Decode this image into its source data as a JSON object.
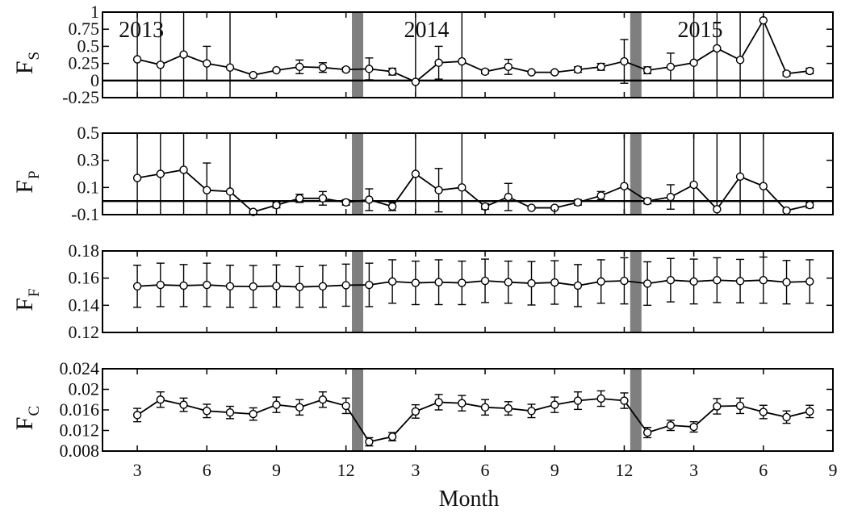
{
  "figure": {
    "xlabel": "Month",
    "x_tick_labels": [
      "3",
      "6",
      "9",
      "12",
      "3",
      "6",
      "9",
      "12",
      "3",
      "6",
      "9"
    ],
    "year_labels": [
      "2013",
      "2014",
      "2015"
    ],
    "gap_after_x": [
      12.5,
      24.5
    ]
  },
  "chart_data": [
    {
      "type": "line",
      "ylabel": "F",
      "ylabel_sub": "S",
      "ylim": [
        -0.25,
        1
      ],
      "y_ticks": [
        -0.25,
        0,
        0.25,
        0.5,
        0.75,
        1
      ],
      "y_tick_labels": [
        "-0.25",
        "0",
        "0.25",
        "0.5",
        "0.75",
        "1"
      ],
      "zero_line": true,
      "x": [
        3,
        4,
        5,
        6,
        7,
        8,
        9,
        10,
        11,
        12,
        13,
        14,
        15,
        16,
        17,
        18,
        19,
        20,
        21,
        22,
        23,
        24,
        25,
        26,
        27,
        28,
        29,
        30,
        31,
        32
      ],
      "values": [
        0.31,
        0.23,
        0.38,
        0.25,
        0.19,
        0.08,
        0.15,
        0.2,
        0.19,
        0.16,
        0.17,
        0.13,
        -0.02,
        0.26,
        0.28,
        0.13,
        0.2,
        0.12,
        0.12,
        0.16,
        0.2,
        0.28,
        0.15,
        0.2,
        0.26,
        0.47,
        0.3,
        0.88,
        0.1,
        0.14
      ],
      "err": [
        1.2,
        1.2,
        1.2,
        0.25,
        1.2,
        0.02,
        0.02,
        0.1,
        0.07,
        0.03,
        0.16,
        0.05,
        1.2,
        0.24,
        1.2,
        0.03,
        0.11,
        0.02,
        0.02,
        0.04,
        0.05,
        0.32,
        0.05,
        0.2,
        1.2,
        1.2,
        1.2,
        1.2,
        0.03,
        0.04
      ]
    },
    {
      "type": "line",
      "ylabel": "F",
      "ylabel_sub": "P",
      "ylim": [
        -0.1,
        0.5
      ],
      "y_ticks": [
        -0.1,
        0.1,
        0.3,
        0.5
      ],
      "y_tick_labels": [
        "-0.1",
        "0.1",
        "0.3",
        "0.5"
      ],
      "zero_line": true,
      "x": [
        3,
        4,
        5,
        6,
        7,
        8,
        9,
        10,
        11,
        12,
        13,
        14,
        15,
        16,
        17,
        18,
        19,
        20,
        21,
        22,
        23,
        24,
        25,
        26,
        27,
        28,
        29,
        30,
        31,
        32
      ],
      "values": [
        0.17,
        0.2,
        0.23,
        0.08,
        0.07,
        -0.08,
        -0.03,
        0.02,
        0.02,
        -0.01,
        0.01,
        -0.04,
        0.2,
        0.08,
        0.1,
        -0.04,
        0.03,
        -0.05,
        -0.05,
        -0.01,
        0.04,
        0.11,
        0,
        0.03,
        0.12,
        -0.06,
        0.18,
        0.11,
        -0.07,
        -0.03
      ],
      "err": [
        0.6,
        0.6,
        0.6,
        0.2,
        0.6,
        0.01,
        0.02,
        0.03,
        0.05,
        0.02,
        0.08,
        0.03,
        0.6,
        0.16,
        0.6,
        0.02,
        0.1,
        0.01,
        0.01,
        0.02,
        0.03,
        0.6,
        0.02,
        0.09,
        0.6,
        0.6,
        0.6,
        0.6,
        0.01,
        0.02
      ]
    },
    {
      "type": "line",
      "ylabel": "F",
      "ylabel_sub": "F",
      "ylim": [
        0.12,
        0.18
      ],
      "y_ticks": [
        0.12,
        0.14,
        0.16,
        0.18
      ],
      "y_tick_labels": [
        "0.12",
        "0.14",
        "0.16",
        "0.18"
      ],
      "zero_line": false,
      "x": [
        3,
        4,
        5,
        6,
        7,
        8,
        9,
        10,
        11,
        12,
        13,
        14,
        15,
        16,
        17,
        18,
        19,
        20,
        21,
        22,
        23,
        24,
        25,
        26,
        27,
        28,
        29,
        30,
        31,
        32
      ],
      "values": [
        0.154,
        0.155,
        0.1545,
        0.155,
        0.154,
        0.1538,
        0.1542,
        0.1535,
        0.154,
        0.1548,
        0.155,
        0.1575,
        0.1565,
        0.157,
        0.1565,
        0.158,
        0.157,
        0.1562,
        0.1568,
        0.1545,
        0.1575,
        0.158,
        0.156,
        0.1585,
        0.1575,
        0.1585,
        0.1578,
        0.1585,
        0.157,
        0.1575
      ],
      "err": [
        0.0155,
        0.016,
        0.0155,
        0.016,
        0.0155,
        0.0155,
        0.0155,
        0.015,
        0.0155,
        0.0155,
        0.016,
        0.016,
        0.016,
        0.0165,
        0.016,
        0.016,
        0.0155,
        0.016,
        0.016,
        0.0155,
        0.016,
        0.017,
        0.016,
        0.016,
        0.0165,
        0.0165,
        0.016,
        0.017,
        0.016,
        0.016
      ]
    },
    {
      "type": "line",
      "ylabel": "F",
      "ylabel_sub": "C",
      "ylim": [
        0.008,
        0.024
      ],
      "y_ticks": [
        0.008,
        0.012,
        0.016,
        0.02,
        0.024
      ],
      "y_tick_labels": [
        "0.008",
        "0.012",
        "0.016",
        "0.02",
        "0.024"
      ],
      "zero_line": false,
      "x": [
        3,
        4,
        5,
        6,
        7,
        8,
        9,
        10,
        11,
        12,
        13,
        14,
        15,
        16,
        17,
        18,
        19,
        20,
        21,
        22,
        23,
        24,
        25,
        26,
        27,
        28,
        29,
        30,
        31,
        32
      ],
      "values": [
        0.015,
        0.018,
        0.017,
        0.0158,
        0.0155,
        0.0152,
        0.017,
        0.0165,
        0.018,
        0.0168,
        0.0098,
        0.0108,
        0.0157,
        0.0175,
        0.0173,
        0.0165,
        0.0163,
        0.0158,
        0.017,
        0.0178,
        0.0182,
        0.0178,
        0.0116,
        0.013,
        0.0127,
        0.0167,
        0.0168,
        0.0156,
        0.0146,
        0.0157
      ],
      "err": [
        0.0013,
        0.0015,
        0.0013,
        0.0013,
        0.0012,
        0.0012,
        0.0015,
        0.0015,
        0.0015,
        0.0015,
        0.0008,
        0.0008,
        0.0013,
        0.0015,
        0.0015,
        0.0015,
        0.0013,
        0.0013,
        0.0015,
        0.0017,
        0.0015,
        0.0015,
        0.001,
        0.001,
        0.001,
        0.0015,
        0.0015,
        0.0013,
        0.0012,
        0.0012
      ]
    }
  ]
}
